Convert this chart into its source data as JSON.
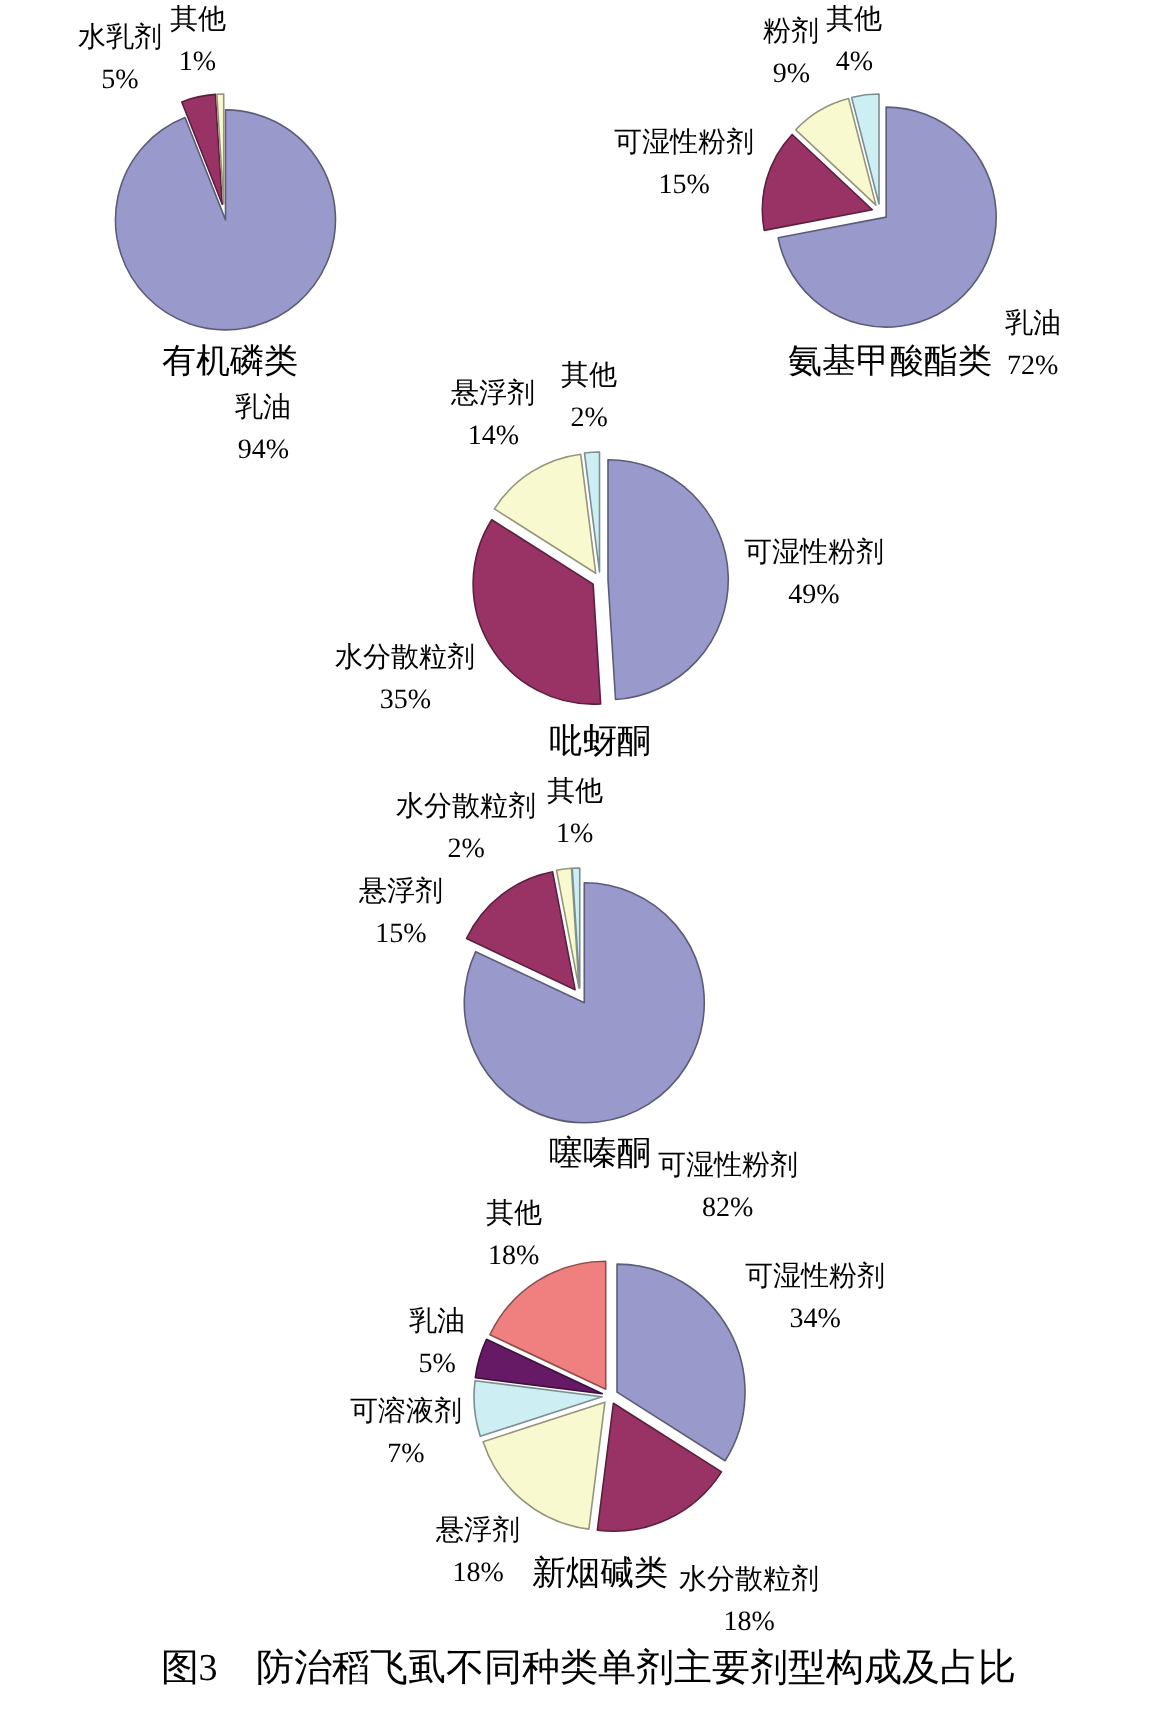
{
  "chart_data": [
    {
      "type": "pie",
      "title": "有机磷类",
      "categories": [
        "乳油",
        "水乳剂",
        "其他"
      ],
      "values": [
        94,
        5,
        1
      ],
      "value_labels": [
        "94%",
        "5%",
        "1%"
      ],
      "colors": [
        "#9999cc",
        "#993366",
        "#f9f9cf"
      ]
    },
    {
      "type": "pie",
      "title": "氨基甲酸酯类",
      "categories": [
        "乳油",
        "可湿性粉剂",
        "粉剂",
        "其他"
      ],
      "values": [
        72,
        15,
        9,
        4
      ],
      "value_labels": [
        "72%",
        "15%",
        "9%",
        "4%"
      ],
      "colors": [
        "#9999cc",
        "#993366",
        "#f9f9cf",
        "#cdeef2"
      ]
    },
    {
      "type": "pie",
      "title": "吡蚜酮",
      "categories": [
        "可湿性粉剂",
        "水分散粒剂",
        "悬浮剂",
        "其他"
      ],
      "values": [
        49,
        35,
        14,
        2
      ],
      "value_labels": [
        "49%",
        "35%",
        "14%",
        "2%"
      ],
      "colors": [
        "#9999cc",
        "#993366",
        "#f9f9cf",
        "#cdeef2"
      ]
    },
    {
      "type": "pie",
      "title": "噻嗪酮",
      "categories": [
        "可湿性粉剂",
        "悬浮剂",
        "水分散粒剂",
        "其他"
      ],
      "values": [
        82,
        15,
        2,
        1
      ],
      "value_labels": [
        "82%",
        "15%",
        "2%",
        "1%"
      ],
      "colors": [
        "#9999cc",
        "#993366",
        "#f9f9cf",
        "#cdeef2"
      ]
    },
    {
      "type": "pie",
      "title": "新烟碱类",
      "categories": [
        "可湿性粉剂",
        "水分散粒剂",
        "悬浮剂",
        "可溶液剂",
        "乳油",
        "其他"
      ],
      "values": [
        34,
        18,
        18,
        7,
        5,
        18
      ],
      "value_labels": [
        "34%",
        "18%",
        "18%",
        "7%",
        "5%",
        "18%"
      ],
      "colors": [
        "#9999cc",
        "#993366",
        "#f9f9cf",
        "#cdeef2",
        "#661a66",
        "#f08080"
      ],
      "annotations": [
        "图3　防治稻飞虱不同种类单剂主要剂型构成及占比"
      ]
    }
  ]
}
